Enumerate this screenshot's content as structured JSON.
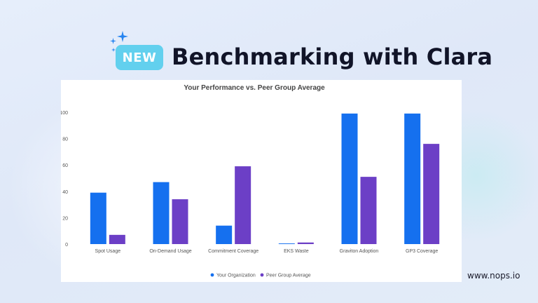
{
  "badge": {
    "label": "NEW",
    "color": "#62d0ee"
  },
  "headline": "Benchmarking with Clara",
  "footer_url": "www.nops.io",
  "icons": [
    "sparkle-icon"
  ],
  "colors": {
    "your_organization": "#1570ef",
    "peer_group_average": "#6c3fc6",
    "sparkle": "#2684f0"
  },
  "chart_data": {
    "type": "bar",
    "title": "Your Performance vs. Peer Group Average",
    "xlabel": "",
    "ylabel": "",
    "categories": [
      "Spot Usage",
      "On-Demand Usage",
      "Commitment Coverage",
      "EKS Waste",
      "Graviton Adoption",
      "GP3 Coverage"
    ],
    "series": [
      {
        "name": "Your Organization",
        "values": [
          39,
          47,
          14,
          0.5,
          99,
          99
        ],
        "color": "#1570ef"
      },
      {
        "name": "Peer Group Average",
        "values": [
          7,
          34,
          59,
          1.2,
          51,
          76
        ],
        "color": "#6c3fc6"
      }
    ],
    "ylim": [
      0,
      100
    ],
    "yticks": [
      0,
      20,
      40,
      60,
      80,
      100
    ],
    "grid": false,
    "legend": "bottom"
  }
}
